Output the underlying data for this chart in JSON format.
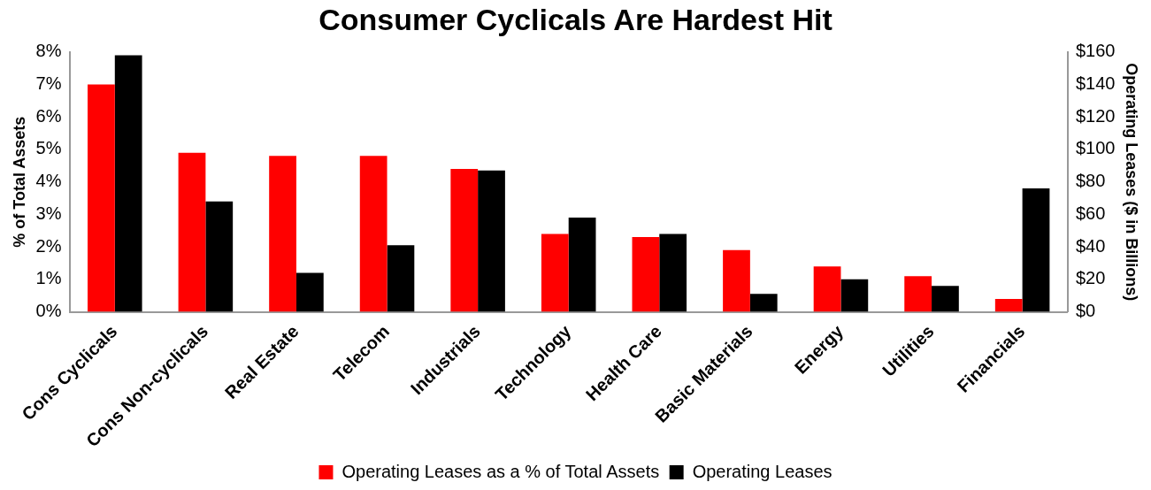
{
  "chart_data": {
    "type": "bar",
    "title": "Consumer Cyclicals Are Hardest Hit",
    "categories": [
      "Cons Cyclicals",
      "Cons Non-cyclicals",
      "Real Estate",
      "Telecom",
      "Industrials",
      "Technology",
      "Health Care",
      "Basic Materials",
      "Energy",
      "Utilities",
      "Financials"
    ],
    "series": [
      {
        "name": "Operating Leases as a % of Total Assets",
        "color": "#ff0000",
        "values": [
          7.0,
          4.9,
          4.8,
          4.8,
          4.4,
          2.4,
          2.3,
          1.9,
          1.4,
          1.1,
          0.4
        ]
      },
      {
        "name": "Operating Leases",
        "color": "#000000",
        "axis": "y2",
        "values": [
          158,
          68,
          24,
          41,
          87,
          58,
          48,
          11,
          20,
          16,
          76
        ]
      }
    ],
    "ylabel": "% of Total Assets",
    "y2label": "Operating Leases ($ in Billions)",
    "ylim": [
      0,
      8
    ],
    "yticks": [
      {
        "value": 0,
        "label": "0%"
      },
      {
        "value": 1,
        "label": "1%"
      },
      {
        "value": 2,
        "label": "2%"
      },
      {
        "value": 3,
        "label": "3%"
      },
      {
        "value": 4,
        "label": "4%"
      },
      {
        "value": 5,
        "label": "5%"
      },
      {
        "value": 6,
        "label": "6%"
      },
      {
        "value": 7,
        "label": "7%"
      },
      {
        "value": 8,
        "label": "8%"
      }
    ],
    "y2lim": [
      0,
      160
    ],
    "y2ticks": [
      {
        "value": 0,
        "label": "$0"
      },
      {
        "value": 20,
        "label": "$20"
      },
      {
        "value": 40,
        "label": "$40"
      },
      {
        "value": 60,
        "label": "$60"
      },
      {
        "value": 80,
        "label": "$80"
      },
      {
        "value": 100,
        "label": "$100"
      },
      {
        "value": 120,
        "label": "$120"
      },
      {
        "value": 140,
        "label": "$140"
      },
      {
        "value": 160,
        "label": "$160"
      }
    ],
    "grid": false,
    "legend": "bottom"
  }
}
